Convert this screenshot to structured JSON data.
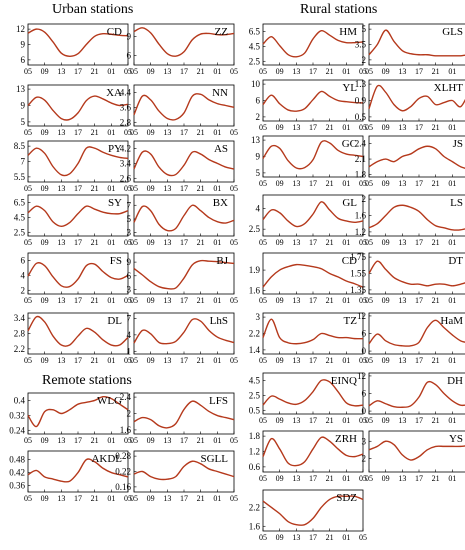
{
  "sections": {
    "urban": "Urban stations",
    "rural": "Rural stations",
    "remote": "Remote stations"
  },
  "colors": {
    "series": "#b5391c",
    "axis": "#000000"
  },
  "x_ticks": [
    "05",
    "09",
    "13",
    "17",
    "21",
    "01",
    "05"
  ],
  "chart_data": [
    {
      "type": "line",
      "label": "CD",
      "group": "urban",
      "yticks": [
        "12",
        "9",
        "6"
      ],
      "ylim": [
        5,
        13
      ],
      "x": [
        5,
        7,
        9,
        11,
        13,
        15,
        17,
        19,
        21,
        23,
        25,
        27,
        29
      ],
      "y": [
        11.2,
        12.0,
        11.4,
        9.5,
        7.3,
        6.7,
        7.2,
        9.0,
        10.6,
        11.1,
        11.0,
        10.8,
        10.7
      ]
    },
    {
      "type": "line",
      "label": "ZZ",
      "group": "urban",
      "yticks": [
        "9",
        "6"
      ],
      "ylim": [
        4.5,
        11
      ],
      "x": [
        5,
        7,
        9,
        11,
        13,
        15,
        17,
        19,
        21,
        23,
        25,
        27,
        29
      ],
      "y": [
        9.8,
        10.4,
        9.6,
        7.8,
        6.3,
        5.9,
        6.6,
        8.5,
        9.4,
        9.5,
        9.3,
        9.3,
        9.5
      ]
    },
    {
      "type": "line",
      "label": "XA",
      "group": "urban",
      "yticks": [
        "13",
        "9",
        "5"
      ],
      "ylim": [
        4,
        14
      ],
      "x": [
        5,
        7,
        9,
        11,
        13,
        15,
        17,
        19,
        21,
        23,
        25,
        27,
        29
      ],
      "y": [
        9.0,
        11.0,
        10.3,
        7.8,
        5.8,
        5.6,
        7.2,
        10.2,
        11.3,
        10.6,
        9.6,
        9.0,
        9.3
      ]
    },
    {
      "type": "line",
      "label": "NN",
      "group": "urban",
      "yticks": [
        "4.4",
        "3.6",
        "2.8"
      ],
      "ylim": [
        2.6,
        4.8
      ],
      "x": [
        5,
        7,
        9,
        11,
        13,
        15,
        17,
        19,
        21,
        23,
        25,
        27,
        29
      ],
      "y": [
        3.2,
        4.2,
        4.0,
        3.4,
        3.0,
        2.95,
        3.3,
        4.2,
        4.3,
        4.0,
        3.8,
        3.7,
        3.6
      ]
    },
    {
      "type": "line",
      "label": "PY",
      "group": "urban",
      "yticks": [
        "8.5",
        "7",
        "5.5"
      ],
      "ylim": [
        5,
        9
      ],
      "x": [
        5,
        7,
        9,
        11,
        13,
        15,
        17,
        19,
        21,
        23,
        25,
        27,
        29
      ],
      "y": [
        7.6,
        8.3,
        7.8,
        6.5,
        5.7,
        5.8,
        6.8,
        8.3,
        8.3,
        7.9,
        7.6,
        7.4,
        7.3
      ]
    },
    {
      "type": "line",
      "label": "AS",
      "group": "urban",
      "yticks": [
        "4.2",
        "3.4",
        "2.6"
      ],
      "ylim": [
        2.4,
        4.6
      ],
      "x": [
        5,
        7,
        9,
        11,
        13,
        15,
        17,
        19,
        21,
        23,
        25,
        27,
        29
      ],
      "y": [
        3.1,
        4.0,
        3.9,
        3.2,
        2.8,
        2.8,
        3.3,
        4.0,
        3.9,
        3.6,
        3.4,
        3.2,
        3.1
      ]
    },
    {
      "type": "line",
      "label": "SY",
      "group": "urban",
      "yticks": [
        "6.5",
        "4.5",
        "2.5"
      ],
      "ylim": [
        2,
        7.5
      ],
      "x": [
        5,
        7,
        9,
        11,
        13,
        15,
        17,
        19,
        21,
        23,
        25,
        27,
        29
      ],
      "y": [
        5.1,
        6.0,
        5.4,
        3.9,
        3.3,
        3.8,
        5.0,
        6.0,
        5.6,
        5.2,
        5.0,
        5.0,
        5.4
      ]
    },
    {
      "type": "line",
      "label": "BX",
      "group": "urban",
      "yticks": [
        "7",
        "5",
        "3"
      ],
      "ylim": [
        2.5,
        8.5
      ],
      "x": [
        5,
        7,
        9,
        11,
        13,
        15,
        17,
        19,
        21,
        23,
        25,
        27,
        29
      ],
      "y": [
        4.5,
        6.8,
        6.2,
        4.2,
        3.3,
        3.6,
        5.5,
        7.0,
        6.2,
        5.2,
        4.6,
        4.4,
        4.8
      ]
    },
    {
      "type": "line",
      "label": "FS",
      "group": "urban",
      "yticks": [
        "6",
        "4",
        "2"
      ],
      "ylim": [
        1.5,
        7
      ],
      "x": [
        5,
        7,
        9,
        11,
        13,
        15,
        17,
        19,
        21,
        23,
        25,
        27,
        29
      ],
      "y": [
        3.9,
        5.6,
        5.3,
        3.8,
        2.6,
        2.5,
        3.5,
        5.3,
        5.5,
        4.5,
        3.7,
        3.5,
        4.0
      ]
    },
    {
      "type": "line",
      "label": "BJ",
      "group": "urban",
      "yticks": [
        "9",
        "6",
        "3"
      ],
      "ylim": [
        2,
        11
      ],
      "x": [
        5,
        7,
        9,
        11,
        13,
        15,
        17,
        19,
        21,
        23,
        25,
        27,
        29
      ],
      "y": [
        7.6,
        6.2,
        4.7,
        3.6,
        3.2,
        3.3,
        5.5,
        8.4,
        9.3,
        9.2,
        9.1,
        8.9,
        8.7
      ]
    },
    {
      "type": "line",
      "label": "DL",
      "group": "urban",
      "yticks": [
        "3.4",
        "2.8",
        "2.2"
      ],
      "ylim": [
        2.0,
        3.6
      ],
      "x": [
        5,
        7,
        9,
        11,
        13,
        15,
        17,
        19,
        21,
        23,
        25,
        27,
        29
      ],
      "y": [
        2.9,
        3.45,
        3.25,
        2.7,
        2.35,
        2.35,
        2.7,
        3.0,
        2.85,
        2.55,
        2.35,
        2.35,
        2.65
      ]
    },
    {
      "type": "line",
      "label": "LhS",
      "group": "urban",
      "yticks": [
        "7",
        "4",
        "1"
      ],
      "ylim": [
        0.5,
        8
      ],
      "x": [
        5,
        7,
        9,
        11,
        13,
        15,
        17,
        19,
        21,
        23,
        25,
        27,
        29
      ],
      "y": [
        2.5,
        4.8,
        4.2,
        2.6,
        2.4,
        2.8,
        4.5,
        6.8,
        6.5,
        4.8,
        3.6,
        3.0,
        2.6
      ]
    },
    {
      "type": "line",
      "label": "WLG",
      "group": "remote",
      "yticks": [
        "0.4",
        "0.32",
        "0.24"
      ],
      "ylim": [
        0.22,
        0.44
      ],
      "x": [
        5,
        7,
        9,
        11,
        13,
        15,
        17,
        19,
        21,
        23,
        25,
        27,
        29
      ],
      "y": [
        0.32,
        0.26,
        0.34,
        0.35,
        0.33,
        0.35,
        0.38,
        0.39,
        0.4,
        0.42,
        0.41,
        0.38,
        0.35
      ]
    },
    {
      "type": "line",
      "label": "LFS",
      "group": "remote",
      "yticks": [
        "2.4",
        "2",
        "1.6"
      ],
      "ylim": [
        1.5,
        2.5
      ],
      "x": [
        5,
        7,
        9,
        11,
        13,
        15,
        17,
        19,
        21,
        23,
        25,
        27,
        29
      ],
      "y": [
        1.8,
        1.9,
        1.85,
        1.7,
        1.65,
        1.75,
        2.1,
        2.3,
        2.2,
        2.05,
        1.95,
        1.9,
        1.85
      ]
    },
    {
      "type": "line",
      "label": "AKDL",
      "group": "remote",
      "yticks": [
        "0.48",
        "0.42",
        "0.36"
      ],
      "ylim": [
        0.33,
        0.52
      ],
      "x": [
        5,
        7,
        9,
        11,
        13,
        15,
        17,
        19,
        21,
        23,
        25,
        27,
        29
      ],
      "y": [
        0.41,
        0.43,
        0.4,
        0.39,
        0.38,
        0.38,
        0.42,
        0.48,
        0.47,
        0.44,
        0.42,
        0.41,
        0.4
      ]
    },
    {
      "type": "line",
      "label": "SGLL",
      "group": "remote",
      "yticks": [
        "0.28",
        "0.22",
        "0.16"
      ],
      "ylim": [
        0.14,
        0.3
      ],
      "x": [
        5,
        7,
        9,
        11,
        13,
        15,
        17,
        19,
        21,
        23,
        25,
        27,
        29
      ],
      "y": [
        0.21,
        0.22,
        0.2,
        0.19,
        0.19,
        0.2,
        0.24,
        0.26,
        0.25,
        0.23,
        0.22,
        0.21,
        0.2
      ]
    },
    {
      "type": "line",
      "label": "HM",
      "group": "rural",
      "yticks": [
        "6.5",
        "4.5",
        "2.5"
      ],
      "ylim": [
        2,
        7.5
      ],
      "x": [
        5,
        7,
        9,
        11,
        13,
        15,
        17,
        19,
        21,
        23,
        25,
        27,
        29
      ],
      "y": [
        4.8,
        5.8,
        4.6,
        3.4,
        3.1,
        3.6,
        5.5,
        6.6,
        6.0,
        5.3,
        5.0,
        5.0,
        5.1
      ]
    },
    {
      "type": "line",
      "label": "GLS",
      "group": "rural",
      "yticks": [
        "5",
        "3.5",
        "2"
      ],
      "ylim": [
        1.5,
        5.5
      ],
      "x": [
        5,
        7,
        9,
        11,
        13,
        15,
        17,
        19,
        21,
        23,
        25,
        27,
        29
      ],
      "y": [
        2.5,
        3.5,
        4.9,
        3.8,
        2.9,
        2.6,
        2.5,
        2.5,
        2.4,
        2.4,
        2.4,
        2.4,
        2.5
      ]
    },
    {
      "type": "line",
      "label": "YL",
      "group": "rural",
      "yticks": [
        "10",
        "6",
        "2"
      ],
      "ylim": [
        1,
        11
      ],
      "x": [
        5,
        7,
        9,
        11,
        13,
        15,
        17,
        19,
        21,
        23,
        25,
        27,
        29
      ],
      "y": [
        5.0,
        7.3,
        5.2,
        3.7,
        3.4,
        4.0,
        6.2,
        8.2,
        7.0,
        6.0,
        5.7,
        5.5,
        5.4
      ]
    },
    {
      "type": "line",
      "label": "XLHT",
      "group": "rural",
      "yticks": [
        "1.3",
        "0.9",
        "0.5"
      ],
      "ylim": [
        0.4,
        1.4
      ],
      "x": [
        5,
        7,
        9,
        11,
        13,
        15,
        17,
        19,
        21,
        23,
        25,
        27,
        29
      ],
      "y": [
        0.7,
        1.25,
        1.1,
        0.8,
        0.65,
        0.75,
        0.95,
        1.0,
        0.8,
        0.85,
        0.9,
        0.75,
        1.1
      ]
    },
    {
      "type": "line",
      "label": "GC",
      "group": "rural",
      "yticks": [
        "13",
        "9",
        "5"
      ],
      "ylim": [
        4,
        14
      ],
      "x": [
        5,
        7,
        9,
        11,
        13,
        15,
        17,
        19,
        21,
        23,
        25,
        27,
        29
      ],
      "y": [
        8.5,
        11.5,
        11.0,
        8.0,
        6.2,
        6.3,
        8.2,
        12.5,
        12.3,
        10.5,
        9.6,
        9.3,
        9.0
      ]
    },
    {
      "type": "line",
      "label": "JS",
      "group": "rural",
      "yticks": [
        "2.4",
        "2.1",
        "1.8"
      ],
      "ylim": [
        1.75,
        2.55
      ],
      "x": [
        5,
        7,
        9,
        11,
        13,
        15,
        17,
        19,
        21,
        23,
        25,
        27,
        29
      ],
      "y": [
        1.95,
        2.05,
        2.1,
        2.05,
        2.15,
        2.2,
        2.3,
        2.35,
        2.3,
        2.15,
        2.05,
        1.95,
        1.9
      ]
    },
    {
      "type": "line",
      "label": "GL",
      "group": "rural",
      "yticks": [
        "4",
        "2.5"
      ],
      "ylim": [
        2,
        5
      ],
      "x": [
        5,
        7,
        9,
        11,
        13,
        15,
        17,
        19,
        21,
        23,
        25,
        27,
        29
      ],
      "y": [
        3.2,
        3.9,
        3.7,
        3.1,
        2.7,
        2.9,
        3.6,
        4.5,
        3.9,
        3.3,
        3.1,
        3.0,
        3.1
      ]
    },
    {
      "type": "line",
      "label": "LS",
      "group": "rural",
      "yticks": [
        "2",
        "1.6",
        "1.2"
      ],
      "ylim": [
        1.1,
        2.1
      ],
      "x": [
        5,
        7,
        9,
        11,
        13,
        15,
        17,
        19,
        21,
        23,
        25,
        27,
        29
      ],
      "y": [
        1.3,
        1.4,
        1.6,
        1.8,
        1.85,
        1.8,
        1.7,
        1.5,
        1.35,
        1.3,
        1.25,
        1.25,
        1.3
      ]
    },
    {
      "type": "line",
      "label": "CD",
      "group": "rural",
      "yticks": [
        "1.9",
        "1.6"
      ],
      "ylim": [
        1.55,
        2.15
      ],
      "x": [
        5,
        7,
        9,
        11,
        13,
        15,
        17,
        19,
        21,
        23,
        25,
        27,
        29
      ],
      "y": [
        1.65,
        1.8,
        1.9,
        1.95,
        1.98,
        1.97,
        1.95,
        1.92,
        1.85,
        1.8,
        1.74,
        1.7,
        1.65
      ]
    },
    {
      "type": "line",
      "label": "DT",
      "group": "rural",
      "yticks": [
        "1.75",
        "1.55",
        "1.35"
      ],
      "ylim": [
        1.3,
        1.8
      ],
      "x": [
        5,
        7,
        9,
        11,
        13,
        15,
        17,
        19,
        21,
        23,
        25,
        27,
        29
      ],
      "y": [
        1.55,
        1.7,
        1.6,
        1.5,
        1.45,
        1.42,
        1.42,
        1.4,
        1.42,
        1.42,
        1.4,
        1.42,
        1.45
      ]
    },
    {
      "type": "line",
      "label": "TZ",
      "group": "rural",
      "yticks": [
        "3",
        "2.2",
        "1.4"
      ],
      "ylim": [
        1.2,
        3.2
      ],
      "x": [
        5,
        7,
        9,
        11,
        13,
        15,
        17,
        19,
        21,
        23,
        25,
        27,
        29
      ],
      "y": [
        2.0,
        2.9,
        2.0,
        1.75,
        1.7,
        1.75,
        1.9,
        2.2,
        2.1,
        2.0,
        2.0,
        1.95,
        1.95
      ]
    },
    {
      "type": "line",
      "label": "HaM",
      "group": "rural",
      "yticks": [
        "12",
        "6",
        "0"
      ],
      "ylim": [
        -1,
        13
      ],
      "x": [
        5,
        7,
        9,
        11,
        13,
        15,
        17,
        19,
        21,
        23,
        25,
        27,
        29
      ],
      "y": [
        2.5,
        5.8,
        3.5,
        2.2,
        1.8,
        1.8,
        3.0,
        8.0,
        10.5,
        8.0,
        5.5,
        3.5,
        2.8
      ]
    },
    {
      "type": "line",
      "label": "EINQ",
      "group": "rural",
      "yticks": [
        "4.5",
        "2.5",
        "0.5"
      ],
      "ylim": [
        0,
        5.5
      ],
      "x": [
        5,
        7,
        9,
        11,
        13,
        15,
        17,
        19,
        21,
        23,
        25,
        27,
        29
      ],
      "y": [
        1.2,
        2.4,
        2.0,
        1.5,
        1.3,
        1.8,
        3.0,
        4.5,
        4.3,
        3.0,
        1.5,
        1.1,
        1.2
      ]
    },
    {
      "type": "line",
      "label": "DH",
      "group": "rural",
      "yticks": [
        "12",
        "6",
        "0"
      ],
      "ylim": [
        -1,
        13
      ],
      "x": [
        5,
        7,
        9,
        11,
        13,
        15,
        17,
        19,
        21,
        23,
        25,
        27,
        29
      ],
      "y": [
        1.8,
        3.5,
        2.5,
        1.5,
        1.3,
        1.8,
        4.8,
        9.8,
        9.0,
        6.0,
        3.5,
        2.0,
        2.2
      ]
    },
    {
      "type": "line",
      "label": "ZRH",
      "group": "rural",
      "yticks": [
        "1.8",
        "1.2",
        "0.6"
      ],
      "ylim": [
        0.4,
        2.0
      ],
      "x": [
        5,
        7,
        9,
        11,
        13,
        15,
        17,
        19,
        21,
        23,
        25,
        27,
        29
      ],
      "y": [
        1.0,
        1.7,
        1.3,
        0.75,
        0.65,
        0.8,
        1.3,
        1.75,
        1.6,
        1.3,
        1.05,
        1.0,
        1.1
      ]
    },
    {
      "type": "line",
      "label": "YS",
      "group": "rural",
      "yticks": [
        "3",
        "2"
      ],
      "ylim": [
        1.2,
        3.6
      ],
      "x": [
        5,
        7,
        9,
        11,
        13,
        15,
        17,
        19,
        21,
        23,
        25,
        27,
        29
      ],
      "y": [
        2.5,
        2.7,
        3.0,
        2.8,
        2.2,
        1.9,
        2.1,
        2.5,
        2.7,
        2.7,
        2.7,
        2.7,
        2.75
      ]
    },
    {
      "type": "line",
      "label": "SDZ",
      "group": "rural",
      "yticks": [
        "2.2",
        "1.6"
      ],
      "ylim": [
        1.45,
        2.75
      ],
      "x": [
        5,
        7,
        9,
        11,
        13,
        15,
        17,
        19,
        21,
        23,
        25,
        27,
        29
      ],
      "y": [
        2.4,
        2.2,
        2.0,
        1.75,
        1.65,
        1.65,
        1.85,
        2.2,
        2.45,
        2.55,
        2.55,
        2.55,
        2.45
      ]
    }
  ]
}
